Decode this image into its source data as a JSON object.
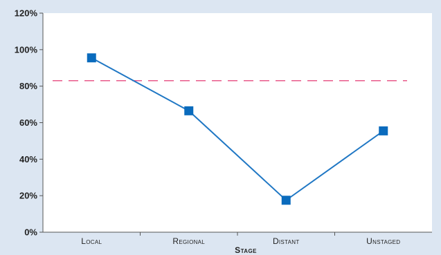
{
  "chart_data": {
    "type": "line",
    "xlabel": "Stage",
    "ylabel": "",
    "categories": [
      "Local",
      "Regional",
      "Distant",
      "Unstaged"
    ],
    "series": [
      {
        "values": [
          95.5,
          66.5,
          17.5,
          55.5
        ]
      }
    ],
    "reference_line": {
      "value": 83
    },
    "ylim": [
      0,
      120
    ],
    "yticks": [
      0,
      20,
      40,
      60,
      80,
      100,
      120
    ],
    "ytick_labels": [
      "0%",
      "20%",
      "40%",
      "60%",
      "80%",
      "100%",
      "120%"
    ],
    "grid": false,
    "colors": {
      "background": "#dce6f2",
      "plot_background": "#ffffff",
      "series": "#1f77c4",
      "marker": "#0a6bbd",
      "reference_line": "#e8588a",
      "axis": "#555555",
      "text": "#222222"
    }
  }
}
